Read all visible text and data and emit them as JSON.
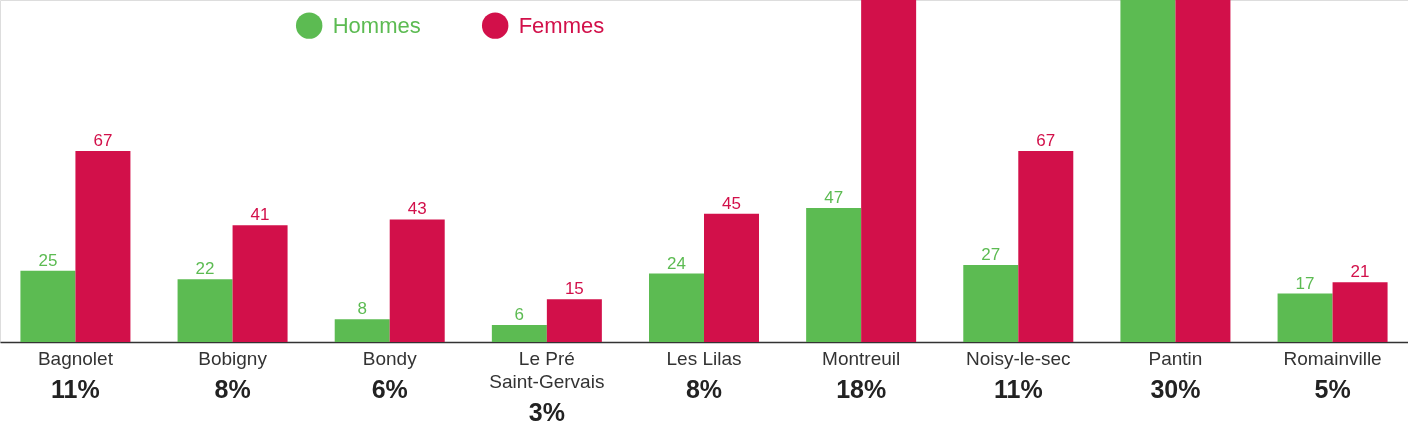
{
  "chart_data": {
    "type": "bar",
    "categories": [
      "Bagnolet",
      "Bobigny",
      "Bondy",
      "Le Pré\nSaint-Gervais",
      "Les Lilas",
      "Montreuil",
      "Noisy-le-sec",
      "Pantin",
      "Romainville"
    ],
    "series": [
      {
        "name": "Hommes",
        "color": "#5cbb52",
        "values": [
          25,
          22,
          8,
          6,
          24,
          47,
          27,
          120,
          17
        ],
        "value_labels": [
          "25",
          "22",
          "8",
          "6",
          "24",
          "47",
          "27",
          null,
          "17"
        ]
      },
      {
        "name": "Femmes",
        "color": "#d2104a",
        "values": [
          67,
          41,
          43,
          15,
          45,
          120,
          67,
          120,
          21
        ],
        "value_labels": [
          "67",
          "41",
          "43",
          "15",
          "45",
          null,
          "67",
          null,
          "21"
        ]
      }
    ],
    "ylim": [
      0,
      120
    ],
    "tick_labels": "x",
    "legend": "top left",
    "annotations": [
      "11%",
      "8%",
      "6%",
      "3%",
      "8%",
      "18%",
      "11%",
      "30%",
      "5%"
    ]
  }
}
